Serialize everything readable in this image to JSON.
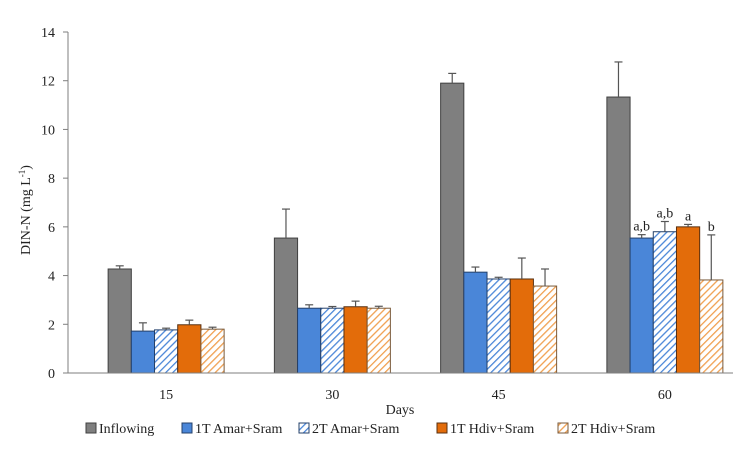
{
  "chart_data": {
    "type": "bar",
    "title": "",
    "xlabel": "Days",
    "ylabel": "DIN-N (mg L",
    "ylabel_superscript": "-1",
    "ylabel_suffix": ")",
    "ylim": [
      0,
      14
    ],
    "yticks": [
      0,
      2,
      4,
      6,
      8,
      10,
      12,
      14
    ],
    "grid": false,
    "legend_position": "bottom",
    "categories": [
      "15",
      "30",
      "45",
      "60"
    ],
    "series": [
      {
        "name": "Inflowing",
        "color": "#7f7f7f",
        "hatch": false,
        "values": [
          4.27,
          5.54,
          11.9,
          11.33
        ],
        "error_upper": [
          4.4,
          6.73,
          12.3,
          12.77
        ]
      },
      {
        "name": "1T Amar+Sram",
        "color": "#4a86d8",
        "hatch": false,
        "values": [
          1.72,
          2.66,
          4.14,
          5.54
        ],
        "error_upper": [
          2.06,
          2.8,
          4.35,
          5.68
        ]
      },
      {
        "name": "2T Amar+Sram",
        "color": "#4a86d8",
        "hatch": true,
        "values": [
          1.77,
          2.66,
          3.86,
          5.8
        ],
        "error_upper": [
          1.84,
          2.73,
          3.93,
          6.22
        ]
      },
      {
        "name": "1T Hdiv+Sram",
        "color": "#e36c0a",
        "hatch": false,
        "values": [
          1.98,
          2.72,
          3.86,
          6.0
        ],
        "error_upper": [
          2.17,
          2.95,
          4.72,
          6.1
        ]
      },
      {
        "name": "2T Hdiv+Sram",
        "color": "#f0a050",
        "hatch": true,
        "values": [
          1.8,
          2.66,
          3.57,
          3.82
        ],
        "error_upper": [
          1.88,
          2.74,
          4.27,
          5.67
        ]
      }
    ],
    "annotations": [
      {
        "category": "60",
        "series": "1T Amar+Sram",
        "text": "a,b"
      },
      {
        "category": "60",
        "series": "2T Amar+Sram",
        "text": "a,b"
      },
      {
        "category": "60",
        "series": "1T Hdiv+Sram",
        "text": "a"
      },
      {
        "category": "60",
        "series": "2T Hdiv+Sram",
        "text": "b"
      }
    ]
  }
}
